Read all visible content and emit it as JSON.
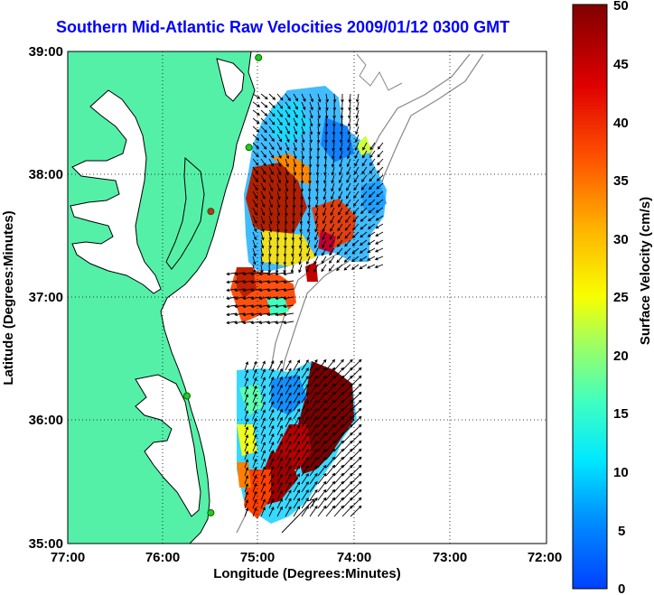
{
  "title": "Southern Mid-Atlantic Raw Velocities 2009/01/12 0300 GMT",
  "x_axis": {
    "label": "Longitude (Degrees:Minutes)",
    "ticks": [
      "77:00",
      "76:00",
      "75:00",
      "74:00",
      "73:00",
      "72:00"
    ]
  },
  "y_axis": {
    "label": "Latitude (Degrees:Minutes)",
    "ticks": [
      "39:00",
      "38:00",
      "37:00",
      "36:00",
      "35:00"
    ]
  },
  "colorbar": {
    "label": "Surface Velocity (cm/s)",
    "ticks": [
      "50",
      "45",
      "40",
      "35",
      "30",
      "25",
      "20",
      "15",
      "10",
      "5",
      "0"
    ],
    "range": [
      0,
      50
    ]
  },
  "map_extent": {
    "lon": [
      -77,
      -72
    ],
    "lat": [
      35,
      39
    ]
  },
  "colors": {
    "land": "#55f0a8",
    "title": "#0000ff",
    "vectors": "#000000"
  },
  "grid": "dotted",
  "sites": [
    {
      "lon": -75.0,
      "lat": 38.95,
      "color": "#22cc22"
    },
    {
      "lon": -75.1,
      "lat": 38.22,
      "color": "#22cc22"
    },
    {
      "lon": -75.5,
      "lat": 37.7,
      "color": "#dd2222"
    },
    {
      "lon": -75.75,
      "lat": 36.2,
      "color": "#22cc22"
    },
    {
      "lon": -75.5,
      "lat": 35.25,
      "color": "#22cc22"
    }
  ]
}
